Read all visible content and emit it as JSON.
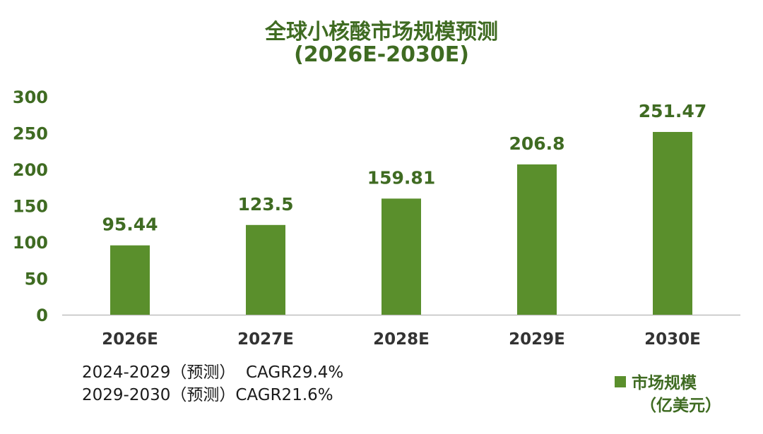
{
  "chart_data": {
    "type": "bar",
    "title": "全球小核酸市场规模预测",
    "subtitle": "(2026E-2030E)",
    "categories": [
      "2026E",
      "2027E",
      "2028E",
      "2029E",
      "2030E"
    ],
    "series": [
      {
        "name": "市场规模（亿美元）",
        "values": [
          95.44,
          123.5,
          159.81,
          206.8,
          251.47
        ],
        "labels": [
          "95.44",
          "123.5",
          "159.81",
          "206.8",
          "251.47"
        ]
      }
    ],
    "yticks": [
      "0",
      "50",
      "100",
      "150",
      "200",
      "250",
      "300"
    ],
    "ylim": [
      0,
      300
    ],
    "grid": false,
    "legend_position": "bottom-right",
    "colors": {
      "bar": "#5A8F2C",
      "text": "#3F6B22",
      "axis": "#BFBFBF"
    }
  },
  "notes": [
    "2024-2029（预测）  CAGR29.4%",
    "2029-2030（预测）CAGR21.6%"
  ],
  "legend": {
    "label": "市场规模",
    "unit": "（亿美元）"
  }
}
